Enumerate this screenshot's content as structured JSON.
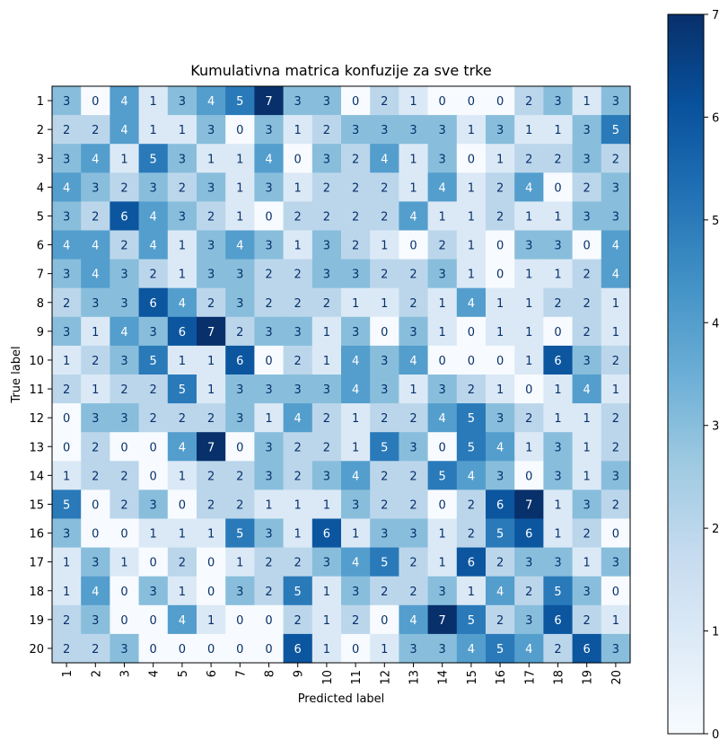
{
  "chart_data": {
    "type": "heatmap",
    "title": "Kumulativna matrica konfuzije za sve trke",
    "xlabel": "Predicted label",
    "ylabel": "True label",
    "x_categories": [
      "1",
      "2",
      "3",
      "4",
      "5",
      "6",
      "7",
      "8",
      "9",
      "10",
      "11",
      "12",
      "13",
      "14",
      "15",
      "16",
      "17",
      "18",
      "19",
      "20"
    ],
    "y_categories": [
      "1",
      "2",
      "3",
      "4",
      "5",
      "6",
      "7",
      "8",
      "9",
      "10",
      "11",
      "12",
      "13",
      "14",
      "15",
      "16",
      "17",
      "18",
      "19",
      "20"
    ],
    "values": [
      [
        3,
        0,
        4,
        1,
        3,
        4,
        5,
        7,
        3,
        3,
        0,
        2,
        1,
        0,
        0,
        0,
        2,
        3,
        1,
        3
      ],
      [
        2,
        2,
        4,
        1,
        1,
        3,
        0,
        3,
        1,
        2,
        3,
        3,
        3,
        3,
        1,
        3,
        1,
        1,
        3,
        5
      ],
      [
        3,
        4,
        1,
        5,
        3,
        1,
        1,
        4,
        0,
        3,
        2,
        4,
        1,
        3,
        0,
        1,
        2,
        2,
        3,
        2
      ],
      [
        4,
        3,
        2,
        3,
        2,
        3,
        1,
        3,
        1,
        2,
        2,
        2,
        1,
        4,
        1,
        2,
        4,
        0,
        2,
        3
      ],
      [
        3,
        2,
        6,
        4,
        3,
        2,
        1,
        0,
        2,
        2,
        2,
        2,
        4,
        1,
        1,
        2,
        1,
        1,
        3,
        3
      ],
      [
        4,
        4,
        2,
        4,
        1,
        3,
        4,
        3,
        1,
        3,
        2,
        1,
        0,
        2,
        1,
        0,
        3,
        3,
        0,
        4
      ],
      [
        3,
        4,
        3,
        2,
        1,
        3,
        3,
        2,
        2,
        3,
        3,
        2,
        2,
        3,
        1,
        0,
        1,
        1,
        2,
        4
      ],
      [
        2,
        3,
        3,
        6,
        4,
        2,
        3,
        2,
        2,
        2,
        1,
        1,
        2,
        1,
        4,
        1,
        1,
        2,
        2,
        1
      ],
      [
        3,
        1,
        4,
        3,
        6,
        7,
        2,
        3,
        3,
        1,
        3,
        0,
        3,
        1,
        0,
        1,
        1,
        0,
        2,
        1
      ],
      [
        1,
        2,
        3,
        5,
        1,
        1,
        6,
        0,
        2,
        1,
        4,
        3,
        4,
        0,
        0,
        0,
        1,
        6,
        3,
        2
      ],
      [
        2,
        1,
        2,
        2,
        5,
        1,
        3,
        3,
        3,
        3,
        4,
        3,
        1,
        3,
        2,
        1,
        0,
        1,
        4,
        1
      ],
      [
        0,
        3,
        3,
        2,
        2,
        2,
        3,
        1,
        4,
        2,
        1,
        2,
        2,
        4,
        5,
        3,
        2,
        1,
        1,
        2
      ],
      [
        0,
        2,
        0,
        0,
        4,
        7,
        0,
        3,
        2,
        2,
        1,
        5,
        3,
        0,
        5,
        4,
        1,
        3,
        1,
        2
      ],
      [
        1,
        2,
        2,
        0,
        1,
        2,
        2,
        3,
        2,
        3,
        4,
        2,
        2,
        5,
        4,
        3,
        0,
        3,
        1,
        3
      ],
      [
        5,
        0,
        2,
        3,
        0,
        2,
        2,
        1,
        1,
        1,
        3,
        2,
        2,
        0,
        2,
        6,
        7,
        1,
        3,
        2
      ],
      [
        3,
        0,
        0,
        1,
        1,
        1,
        5,
        3,
        1,
        6,
        1,
        3,
        3,
        1,
        2,
        5,
        6,
        1,
        2,
        0
      ],
      [
        1,
        3,
        1,
        0,
        2,
        0,
        1,
        2,
        2,
        3,
        4,
        5,
        2,
        1,
        6,
        2,
        3,
        3,
        1,
        3
      ],
      [
        1,
        4,
        0,
        3,
        1,
        0,
        3,
        2,
        5,
        1,
        3,
        2,
        2,
        3,
        1,
        4,
        2,
        5,
        3,
        0
      ],
      [
        2,
        3,
        0,
        0,
        4,
        1,
        0,
        0,
        2,
        1,
        2,
        0,
        4,
        7,
        5,
        2,
        3,
        6,
        2,
        1
      ],
      [
        2,
        2,
        3,
        0,
        0,
        0,
        0,
        0,
        6,
        1,
        0,
        1,
        3,
        3,
        4,
        5,
        4,
        2,
        6,
        3
      ]
    ],
    "vmin": 0,
    "vmax": 7,
    "colormap": "Blues",
    "colorbar_ticks": [
      "0",
      "1",
      "2",
      "3",
      "4",
      "5",
      "6",
      "7"
    ]
  }
}
